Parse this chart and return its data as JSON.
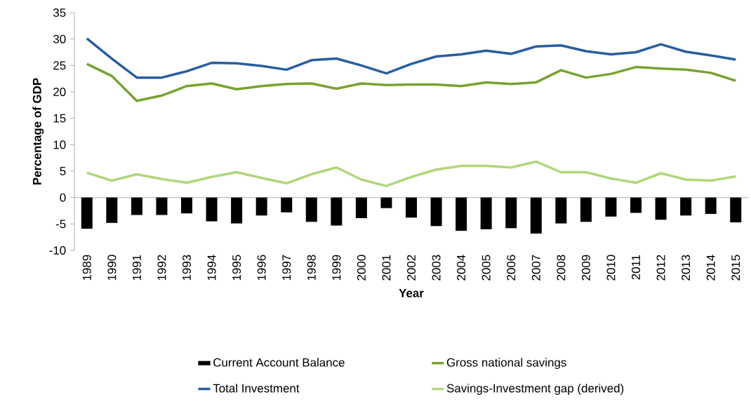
{
  "chart_data": {
    "type": "line",
    "xlabel": "Year",
    "ylabel": "Percentage of GDP",
    "categories": [
      "1989",
      "1990",
      "1991",
      "1992",
      "1993",
      "1994",
      "1995",
      "1996",
      "1997",
      "1998",
      "1999",
      "2000",
      "2001",
      "2002",
      "2003",
      "2004",
      "2005",
      "2006",
      "2007",
      "2008",
      "2009",
      "2010",
      "2011",
      "2012",
      "2013",
      "2014",
      "2015"
    ],
    "series": [
      {
        "name": "Current Account Balance",
        "type": "bar",
        "color": "#000000",
        "values": [
          -5.9,
          -4.8,
          -3.3,
          -3.3,
          -3.0,
          -4.5,
          -4.9,
          -3.4,
          -2.8,
          -4.6,
          -5.3,
          -3.9,
          -2.0,
          -3.8,
          -5.4,
          -6.3,
          -6.0,
          -5.8,
          -6.8,
          -4.9,
          -4.6,
          -3.6,
          -2.9,
          -4.2,
          -3.4,
          -3.1,
          -4.7
        ]
      },
      {
        "name": "Gross national savings",
        "color": "#78a22f",
        "values": [
          25.3,
          23.0,
          18.3,
          19.3,
          21.1,
          21.6,
          20.5,
          21.1,
          21.5,
          21.6,
          20.6,
          21.6,
          21.3,
          21.4,
          21.4,
          21.1,
          21.8,
          21.5,
          21.8,
          24.1,
          22.7,
          23.4,
          24.7,
          24.4,
          24.2,
          23.6,
          22.1
        ]
      },
      {
        "name": "Total Investment",
        "color": "#2a5d9f",
        "values": [
          30.1,
          26.3,
          22.7,
          22.7,
          23.9,
          25.5,
          25.4,
          24.9,
          24.2,
          26.0,
          26.3,
          25.0,
          23.5,
          25.3,
          26.7,
          27.1,
          27.8,
          27.2,
          28.6,
          28.8,
          27.7,
          27.1,
          27.5,
          29.0,
          27.6,
          26.9,
          26.1
        ]
      },
      {
        "name": "Savings-Investment gap (derived)",
        "color": "#b1d67a",
        "values": [
          4.7,
          3.2,
          4.4,
          3.5,
          2.8,
          3.9,
          4.8,
          3.7,
          2.7,
          4.4,
          5.7,
          3.4,
          2.2,
          3.9,
          5.3,
          6.0,
          6.0,
          5.7,
          6.8,
          4.8,
          4.8,
          3.6,
          2.8,
          4.6,
          3.4,
          3.2,
          4.0
        ]
      }
    ],
    "ylim": [
      -10,
      35
    ],
    "yticks": [
      -10,
      -5,
      0,
      5,
      10,
      15,
      20,
      25,
      30,
      35
    ],
    "legend": "bottom"
  }
}
